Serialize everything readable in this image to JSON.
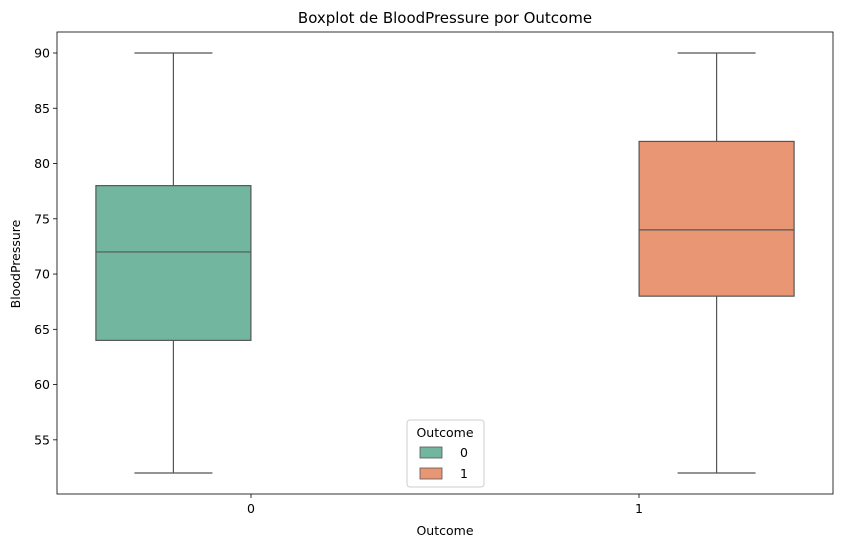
{
  "chart_data": {
    "type": "boxplot",
    "title": "Boxplot de BloodPressure por Outcome",
    "xlabel": "Outcome",
    "ylabel": "BloodPressure",
    "categories": [
      "0",
      "1"
    ],
    "ylim": [
      50.1,
      91.9
    ],
    "yticks": [
      55,
      60,
      65,
      70,
      75,
      80,
      85,
      90
    ],
    "grid": false,
    "legend": {
      "title": "Outcome",
      "placement": "lower-center",
      "entries": [
        {
          "label": "0",
          "color": "#72b6a0"
        },
        {
          "label": "1",
          "color": "#e99675"
        }
      ]
    },
    "series": [
      {
        "name": "0",
        "category": "0",
        "color": "#72b6a0",
        "whisker_low": 52,
        "q1": 64,
        "median": 72,
        "q3": 78,
        "whisker_high": 90
      },
      {
        "name": "1",
        "category": "1",
        "color": "#e99675",
        "whisker_low": 52,
        "q1": 68,
        "median": 74,
        "q3": 82,
        "whisker_high": 90
      }
    ],
    "line_color": "#555555"
  }
}
